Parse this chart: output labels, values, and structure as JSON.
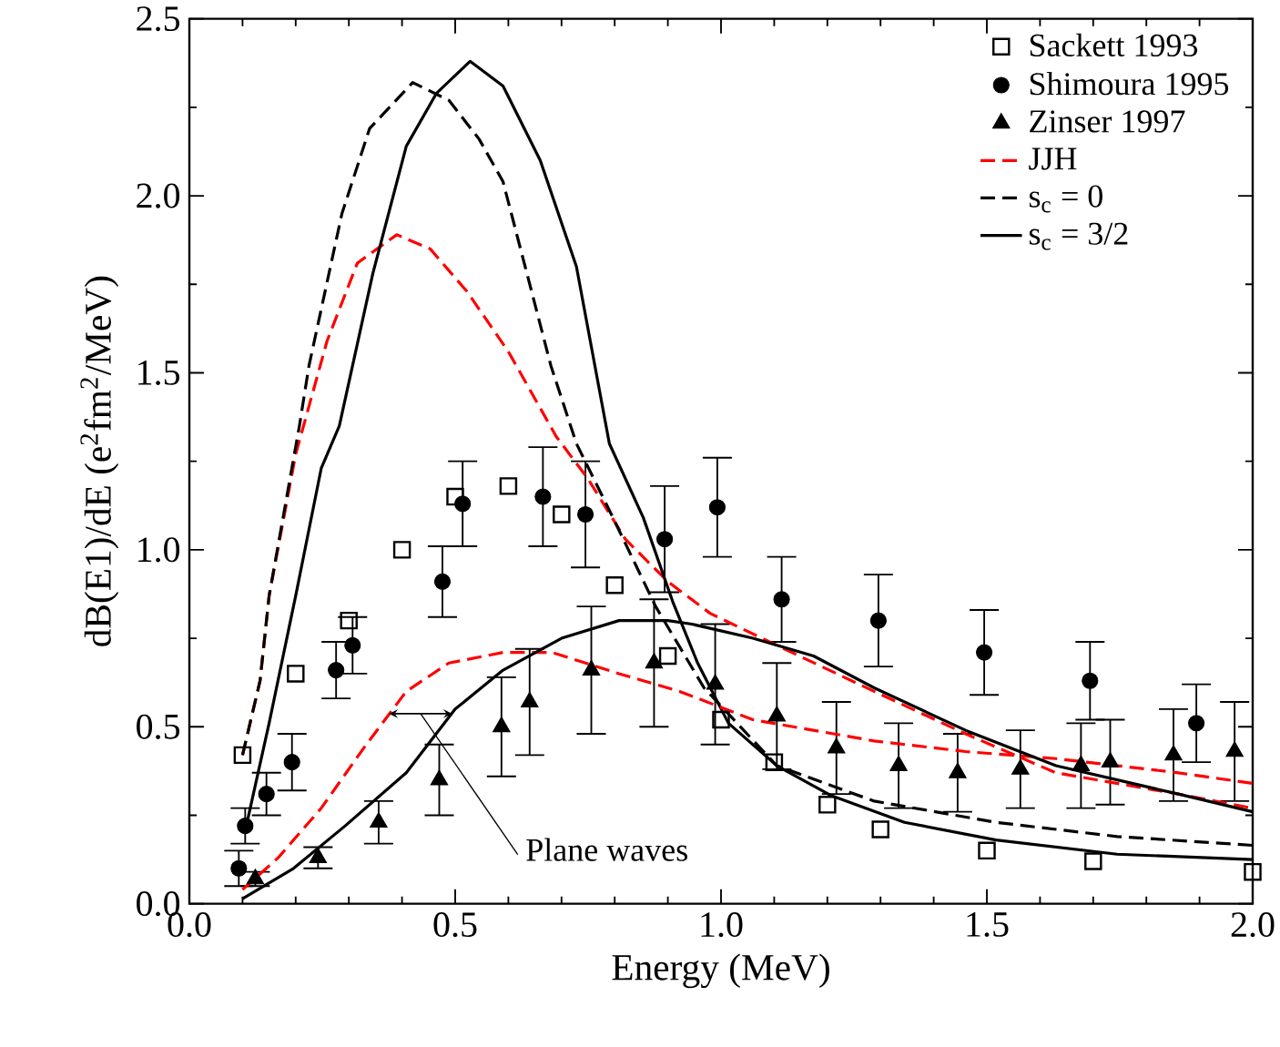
{
  "chart_data": {
    "type": "scatter",
    "xlabel": "Energy (MeV)",
    "ylabel": "dB(E1)/dE (e$^{2}$fm$^{2}$/MeV)",
    "xlim": [
      0,
      2.0
    ],
    "ylim": [
      0,
      2.5
    ],
    "xticks": [
      {
        "value": 0,
        "label": "0.0"
      },
      0.5,
      {
        "value": 1,
        "label": "1.0"
      },
      1.5,
      {
        "value": 2,
        "label": "2.0"
      }
    ],
    "yticks": [
      {
        "value": 0,
        "label": "0.0"
      },
      0.5,
      {
        "value": 1,
        "label": "1.0"
      },
      1.5,
      {
        "value": 2,
        "label": "2.0"
      },
      2.5
    ],
    "legend": "top right",
    "grid": false,
    "annotations": [
      "Plane waves"
    ],
    "series": [
      {
        "name": "Sackett 1993",
        "marker": "square",
        "color": "#000000",
        "x": [
          0.1,
          0.2,
          0.3,
          0.4,
          0.5,
          0.6,
          0.7,
          0.8,
          0.9,
          1.0,
          1.1,
          1.2,
          1.3,
          1.5,
          1.7,
          2.0
        ],
        "values": [
          0.42,
          0.65,
          0.8,
          1.0,
          1.15,
          1.18,
          1.1,
          0.9,
          0.7,
          0.52,
          0.4,
          0.28,
          0.21,
          0.15,
          0.12,
          0.09
        ]
      },
      {
        "name": "Shimoura 1995",
        "marker": "circle",
        "color": "#000000",
        "x": [
          0.093,
          0.105,
          0.145,
          0.193,
          0.276,
          0.307,
          0.476,
          0.514,
          0.665,
          0.745,
          0.894,
          0.993,
          1.114,
          1.296,
          1.495,
          1.694,
          1.894
        ],
        "values": [
          0.1,
          0.22,
          0.31,
          0.4,
          0.66,
          0.73,
          0.91,
          1.13,
          1.15,
          1.1,
          1.03,
          1.12,
          0.86,
          0.8,
          0.71,
          0.63,
          0.51
        ],
        "errors": [
          0.05,
          0.05,
          0.06,
          0.08,
          0.08,
          0.08,
          0.1,
          0.12,
          0.14,
          0.15,
          0.15,
          0.14,
          0.12,
          0.13,
          0.12,
          0.11,
          0.11
        ]
      },
      {
        "name": "Zinser 1997",
        "marker": "triangle",
        "color": "#000000",
        "x": [
          0.124,
          0.242,
          0.356,
          0.47,
          0.587,
          0.64,
          0.756,
          0.874,
          0.989,
          1.105,
          1.217,
          1.334,
          1.445,
          1.563,
          1.677,
          1.732,
          1.851,
          1.966
        ],
        "values": [
          0.07,
          0.13,
          0.23,
          0.35,
          0.5,
          0.57,
          0.66,
          0.68,
          0.62,
          0.53,
          0.44,
          0.39,
          0.37,
          0.38,
          0.39,
          0.4,
          0.42,
          0.43
        ],
        "errors": [
          0.02,
          0.03,
          0.06,
          0.1,
          0.14,
          0.15,
          0.18,
          0.18,
          0.17,
          0.15,
          0.13,
          0.12,
          0.11,
          0.11,
          0.12,
          0.12,
          0.13,
          0.14
        ]
      },
      {
        "name": "JJH",
        "type": "line",
        "marker": "none",
        "line_style": "dashed",
        "color": "#ff0000",
        "x": [
          0.1,
          0.133,
          0.15,
          0.2,
          0.259,
          0.316,
          0.39,
          0.453,
          0.522,
          0.6,
          0.69,
          0.75,
          0.82,
          0.9,
          0.98,
          1.105,
          1.288,
          1.46,
          1.63,
          1.86,
          2.0
        ],
        "values": [
          0.42,
          0.63,
          0.87,
          1.27,
          1.59,
          1.81,
          1.89,
          1.85,
          1.73,
          1.56,
          1.32,
          1.2,
          1.03,
          0.91,
          0.82,
          0.73,
          0.6,
          0.48,
          0.37,
          0.31,
          0.27
        ]
      },
      {
        "name": "s$_{c}$ = 0",
        "type": "line",
        "marker": "none",
        "line_style": "dashed",
        "color": "#000000",
        "x": [
          0.1,
          0.133,
          0.15,
          0.207,
          0.225,
          0.287,
          0.339,
          0.42,
          0.488,
          0.545,
          0.59,
          0.68,
          0.728,
          0.797,
          0.877,
          0.968,
          1.105,
          1.288,
          1.517,
          1.745,
          2.0
        ],
        "values": [
          0.42,
          0.63,
          0.87,
          1.35,
          1.52,
          1.95,
          2.19,
          2.32,
          2.27,
          2.16,
          2.04,
          1.52,
          1.3,
          1.09,
          0.84,
          0.61,
          0.39,
          0.29,
          0.23,
          0.19,
          0.165
        ]
      },
      {
        "name": "s$_{c}$ = 3/2",
        "type": "line",
        "marker": "none",
        "line_style": "solid",
        "color": "#000000",
        "x": [
          0.11,
          0.15,
          0.2,
          0.248,
          0.282,
          0.345,
          0.408,
          0.465,
          0.528,
          0.59,
          0.66,
          0.728,
          0.79,
          0.854,
          0.91,
          0.956,
          1.014,
          1.105,
          1.208,
          1.345,
          1.517,
          1.745,
          2.0
        ],
        "values": [
          0.24,
          0.51,
          0.87,
          1.23,
          1.35,
          1.78,
          2.14,
          2.29,
          2.38,
          2.31,
          2.1,
          1.8,
          1.3,
          1.09,
          0.85,
          0.68,
          0.51,
          0.39,
          0.305,
          0.23,
          0.18,
          0.14,
          0.125
        ]
      },
      {
        "type": "line",
        "marker": "none",
        "line_style": "dashed",
        "color": "#ff0000",
        "x": [
          0.1,
          0.167,
          0.248,
          0.328,
          0.408,
          0.488,
          0.59,
          0.682,
          0.808,
          0.922,
          1.06,
          1.288,
          1.46,
          1.63,
          1.86,
          2.0
        ],
        "values": [
          0.04,
          0.13,
          0.27,
          0.44,
          0.6,
          0.68,
          0.71,
          0.71,
          0.65,
          0.6,
          0.52,
          0.46,
          0.43,
          0.41,
          0.37,
          0.34
        ]
      },
      {
        "type": "line",
        "marker": "none",
        "line_style": "solid",
        "color": "#000000",
        "x": [
          0.1,
          0.196,
          0.293,
          0.408,
          0.5,
          0.59,
          0.7,
          0.808,
          0.9,
          0.945,
          1.06,
          1.174,
          1.288,
          1.46,
          1.63,
          1.86,
          2.0
        ],
        "values": [
          0.014,
          0.1,
          0.22,
          0.37,
          0.55,
          0.66,
          0.75,
          0.8,
          0.8,
          0.79,
          0.75,
          0.7,
          0.61,
          0.49,
          0.39,
          0.31,
          0.26
        ]
      }
    ]
  }
}
